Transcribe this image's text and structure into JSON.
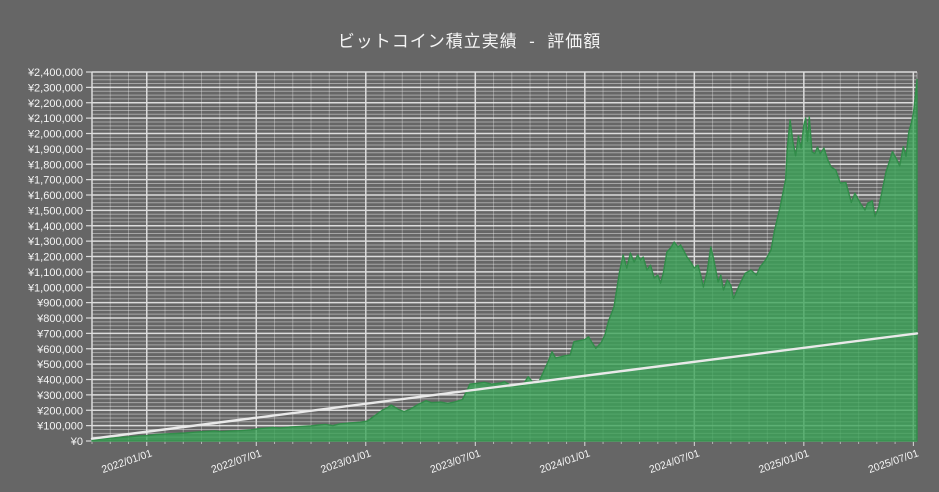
{
  "title": "ビットコイン積立実績  -  評価額",
  "colors": {
    "background": "#666666",
    "grid_minor": "rgba(255,255,255,0.42)",
    "grid_major": "#dcdcdc",
    "area_fill": "#3aa457",
    "area_stroke": "#2f8c48",
    "investment_line": "#e9e9e9",
    "label_text": "#f5f5f5",
    "title_text": "#f5f5f5"
  },
  "chart_data": {
    "type": "area",
    "title": "ビットコイン積立実績  -  評価額",
    "legend": "none",
    "grid": "on",
    "x_axis": {
      "start": "2021/10/01",
      "end": "2025/07/01",
      "month_span": 45.2,
      "minor_step_months": 1,
      "major_step_months": 6,
      "tick_labels": [
        {
          "m": 3,
          "label": "2022/01/01"
        },
        {
          "m": 9,
          "label": "2022/07/01"
        },
        {
          "m": 15,
          "label": "2023/01/01"
        },
        {
          "m": 21,
          "label": "2023/07/01"
        },
        {
          "m": 27,
          "label": "2024/01/01"
        },
        {
          "m": 33,
          "label": "2024/07/01"
        },
        {
          "m": 39,
          "label": "2025/01/01"
        },
        {
          "m": 45,
          "label": "2025/07/01"
        }
      ]
    },
    "y_axis": {
      "min": 0,
      "max": 2400000,
      "major_step": 100000,
      "minor_step": 25000,
      "tick_labels": [
        "¥0",
        "¥100,000",
        "¥200,000",
        "¥300,000",
        "¥400,000",
        "¥500,000",
        "¥600,000",
        "¥700,000",
        "¥800,000",
        "¥900,000",
        "¥1,000,000",
        "¥1,100,000",
        "¥1,200,000",
        "¥1,300,000",
        "¥1,400,000",
        "¥1,500,000",
        "¥1,600,000",
        "¥1,700,000",
        "¥1,800,000",
        "¥1,900,000",
        "¥2,000,000",
        "¥2,100,000",
        "¥2,200,000",
        "¥2,300,000",
        "¥2,400,000"
      ]
    },
    "series": [
      {
        "id": "valuation_area",
        "kind": "area",
        "points": [
          [
            0,
            5000
          ],
          [
            0.4,
            12000
          ],
          [
            1,
            18000
          ],
          [
            1.5,
            23000
          ],
          [
            2.1,
            28000
          ],
          [
            2.6,
            33000
          ],
          [
            3.1,
            36000
          ],
          [
            3.5,
            42000
          ],
          [
            4,
            46000
          ],
          [
            4.6,
            49000
          ],
          [
            5.1,
            52000
          ],
          [
            5.6,
            57000
          ],
          [
            6.2,
            62000
          ],
          [
            6.7,
            66000
          ],
          [
            7.1,
            61000
          ],
          [
            7.6,
            65000
          ],
          [
            8.1,
            67000
          ],
          [
            8.7,
            73000
          ],
          [
            9,
            78000
          ],
          [
            9.5,
            84000
          ],
          [
            9.9,
            88000
          ],
          [
            10.3,
            85000
          ],
          [
            10.9,
            91000
          ],
          [
            11.4,
            95000
          ],
          [
            12,
            99000
          ],
          [
            12.4,
            104000
          ],
          [
            12.8,
            108000
          ],
          [
            13.2,
            100000
          ],
          [
            13.6,
            112000
          ],
          [
            14.1,
            118000
          ],
          [
            14.7,
            122000
          ],
          [
            15.1,
            130000
          ],
          [
            15.5,
            165000
          ],
          [
            15.9,
            200000
          ],
          [
            16.2,
            217000
          ],
          [
            16.4,
            234000
          ],
          [
            16.8,
            205000
          ],
          [
            17.1,
            192000
          ],
          [
            17.4,
            205000
          ],
          [
            17.9,
            240000
          ],
          [
            18.3,
            262000
          ],
          [
            18.6,
            250000
          ],
          [
            19.1,
            253000
          ],
          [
            19.5,
            245000
          ],
          [
            19.9,
            255000
          ],
          [
            20.3,
            270000
          ],
          [
            20.55,
            330000
          ],
          [
            20.7,
            370000
          ],
          [
            21.1,
            375000
          ],
          [
            21.5,
            382000
          ],
          [
            21.9,
            370000
          ],
          [
            22.4,
            378000
          ],
          [
            22.6,
            386000
          ],
          [
            22.9,
            365000
          ],
          [
            23.3,
            358000
          ],
          [
            23.6,
            364000
          ],
          [
            23.9,
            418000
          ],
          [
            24.2,
            375000
          ],
          [
            24.5,
            390000
          ],
          [
            24.7,
            440000
          ],
          [
            25,
            520000
          ],
          [
            25.2,
            581000
          ],
          [
            25.4,
            540000
          ],
          [
            25.7,
            548000
          ],
          [
            25.9,
            555000
          ],
          [
            26.2,
            560000
          ],
          [
            26.4,
            646000
          ],
          [
            26.8,
            655000
          ],
          [
            27,
            660000
          ],
          [
            27.2,
            678000
          ],
          [
            27.4,
            640000
          ],
          [
            27.6,
            603000
          ],
          [
            27.9,
            640000
          ],
          [
            28.1,
            690000
          ],
          [
            28.3,
            780000
          ],
          [
            28.6,
            873000
          ],
          [
            28.9,
            1100000
          ],
          [
            29.1,
            1210000
          ],
          [
            29.3,
            1125000
          ],
          [
            29.5,
            1222000
          ],
          [
            29.7,
            1164000
          ],
          [
            29.9,
            1210000
          ],
          [
            30.05,
            1177000
          ],
          [
            30.2,
            1197000
          ],
          [
            30.4,
            1112000
          ],
          [
            30.6,
            1144000
          ],
          [
            30.8,
            1060000
          ],
          [
            31,
            1079000
          ],
          [
            31.15,
            1027000
          ],
          [
            31.3,
            1092000
          ],
          [
            31.5,
            1229000
          ],
          [
            31.7,
            1255000
          ],
          [
            31.9,
            1294000
          ],
          [
            32.1,
            1262000
          ],
          [
            32.25,
            1275000
          ],
          [
            32.4,
            1242000
          ],
          [
            32.6,
            1197000
          ],
          [
            32.8,
            1164000
          ],
          [
            33,
            1125000
          ],
          [
            33.2,
            1144000
          ],
          [
            33.35,
            1079000
          ],
          [
            33.5,
            1001000
          ],
          [
            33.7,
            1100000
          ],
          [
            33.9,
            1262000
          ],
          [
            34.05,
            1190000
          ],
          [
            34.3,
            1034000
          ],
          [
            34.45,
            1079000
          ],
          [
            34.6,
            982000
          ],
          [
            34.8,
            1047000
          ],
          [
            35,
            1014000
          ],
          [
            35.15,
            928000
          ],
          [
            35.4,
            995000
          ],
          [
            35.55,
            1034000
          ],
          [
            35.8,
            1092000
          ],
          [
            36.1,
            1112000
          ],
          [
            36.4,
            1079000
          ],
          [
            36.6,
            1131000
          ],
          [
            36.9,
            1177000
          ],
          [
            37.2,
            1242000
          ],
          [
            37.4,
            1372000
          ],
          [
            37.7,
            1522000
          ],
          [
            38,
            1700000
          ],
          [
            38.1,
            1914000
          ],
          [
            38.25,
            2088000
          ],
          [
            38.4,
            1950000
          ],
          [
            38.55,
            1855000
          ],
          [
            38.7,
            1985000
          ],
          [
            38.85,
            1905000
          ],
          [
            39,
            2055000
          ],
          [
            39.1,
            2100000
          ],
          [
            39.2,
            1950000
          ],
          [
            39.3,
            2107000
          ],
          [
            39.45,
            1880000
          ],
          [
            39.6,
            1870000
          ],
          [
            39.75,
            1912000
          ],
          [
            39.9,
            1868000
          ],
          [
            40.1,
            1906000
          ],
          [
            40.3,
            1830000
          ],
          [
            40.5,
            1782000
          ],
          [
            40.75,
            1762000
          ],
          [
            41,
            1678000
          ],
          [
            41.3,
            1682000
          ],
          [
            41.6,
            1552000
          ],
          [
            41.8,
            1612000
          ],
          [
            42.1,
            1545000
          ],
          [
            42.35,
            1502000
          ],
          [
            42.5,
            1547000
          ],
          [
            42.75,
            1562000
          ],
          [
            42.9,
            1460000
          ],
          [
            43.1,
            1520000
          ],
          [
            43.3,
            1632000
          ],
          [
            43.5,
            1750000
          ],
          [
            43.7,
            1822000
          ],
          [
            43.85,
            1882000
          ],
          [
            44.05,
            1840000
          ],
          [
            44.25,
            1790000
          ],
          [
            44.45,
            1914000
          ],
          [
            44.6,
            1852000
          ],
          [
            44.75,
            2010000
          ],
          [
            44.9,
            2072000
          ],
          [
            45,
            2130000
          ],
          [
            45.1,
            2230000
          ],
          [
            45.2,
            2352000
          ]
        ]
      },
      {
        "id": "investment_line",
        "kind": "line",
        "points": [
          [
            0,
            15000
          ],
          [
            45.2,
            700000
          ]
        ]
      }
    ]
  }
}
